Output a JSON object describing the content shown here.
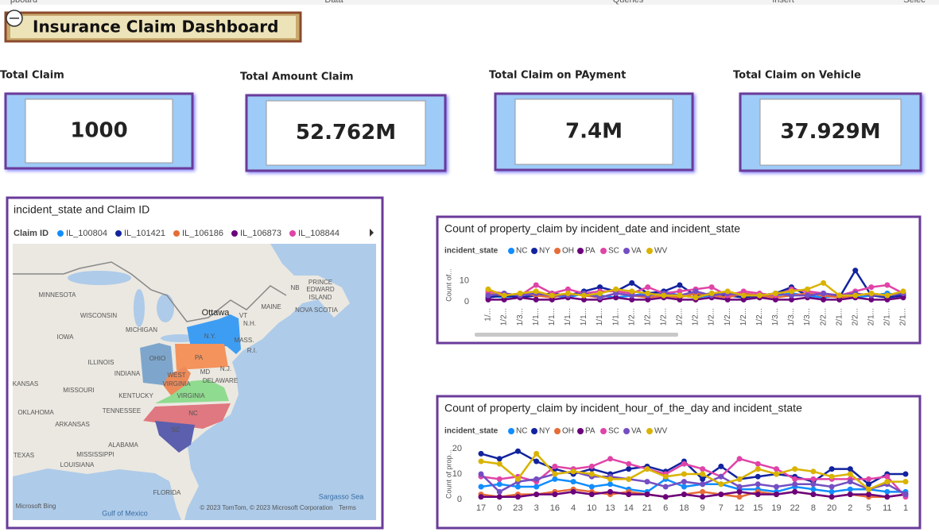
{
  "toolbar": [
    "pboard",
    "Data",
    "Queries",
    "Insert",
    "Selec"
  ],
  "header": {
    "title": "Insurance Claim Dashboard"
  },
  "cards": [
    {
      "label": "Total Claim",
      "value": "1000"
    },
    {
      "label": "Total Amount Claim",
      "value": "52.762M"
    },
    {
      "label": "Total Claim on PAyment",
      "value": "7.4M"
    },
    {
      "label": "Total Claim on Vehicle",
      "value": "37.929M"
    }
  ],
  "map": {
    "title": "incident_state and Claim ID",
    "legend_title": "Claim ID",
    "legend": [
      {
        "name": "IL_100804",
        "color": "#118dff"
      },
      {
        "name": "IL_101421",
        "color": "#12239e"
      },
      {
        "name": "IL_106186",
        "color": "#e66c37"
      },
      {
        "name": "IL_106873",
        "color": "#6b007b"
      },
      {
        "name": "IL_108844",
        "color": "#e044a7"
      }
    ],
    "labels": [
      "MINNESOTA",
      "WISCONSIN",
      "MICHIGAN",
      "IOWA",
      "ILLINOIS",
      "INDIANA",
      "OHIO",
      "KANSAS",
      "MISSOURI",
      "KENTUCKY",
      "OKLAHOMA",
      "TENNESSEE",
      "ARKANSAS",
      "ALABAMA",
      "MISSISSIPPI",
      "LOUISIANA",
      "TEXAS",
      "FLORIDA",
      "Gulf of Mexico",
      "Sargasso Sea",
      "Ottawa",
      "MAINE",
      "NB",
      "PRINCE",
      "EDWARD",
      "ISLAND",
      "NOVA SCOTIA",
      "VT",
      "N.H.",
      "MASS.",
      "R.I.",
      "N.Y.",
      "PA",
      "MD",
      "N.J.",
      "DELAWARE",
      "WEST",
      "VIRGINIA",
      "VIRGINIA",
      "NC",
      "SC",
      "Microsoft Bing",
      "© 2023 TomTom, © 2023 Microsoft Corporation",
      "Terms"
    ]
  },
  "chart_data": [
    {
      "type": "line",
      "title": "Count of property_claim by incident_date and incident_state",
      "legend_title": "incident_state",
      "y_label": "Count of...",
      "categories": [
        "1/...",
        "1/2...",
        "1/3...",
        "1/1...",
        "1/1...",
        "1/1...",
        "1/1...",
        "1/1...",
        "1/1...",
        "1/2...",
        "1/2...",
        "1/2...",
        "1/2...",
        "1/2...",
        "1/2...",
        "1/2...",
        "1/2...",
        "1/2...",
        "1/3...",
        "1/3...",
        "1/3...",
        "2/2...",
        "2/1...",
        "2/2...",
        "2/1...",
        "2/1...",
        "2/1..."
      ],
      "ylim": [
        0,
        16
      ],
      "yticks": [
        0,
        10
      ],
      "series": [
        {
          "name": "NC",
          "color": "#118dff",
          "values": [
            3,
            2,
            3,
            4,
            3,
            2,
            4,
            3,
            2,
            3,
            4,
            5,
            3,
            2,
            3,
            4,
            3,
            2,
            3,
            4,
            3,
            2,
            3,
            2,
            3,
            4,
            3
          ]
        },
        {
          "name": "NY",
          "color": "#12239e",
          "values": [
            2,
            3,
            2,
            3,
            4,
            3,
            5,
            7,
            5,
            9,
            4,
            5,
            8,
            3,
            4,
            3,
            2,
            3,
            4,
            7,
            3,
            4,
            2,
            15,
            3,
            2,
            3
          ]
        },
        {
          "name": "OH",
          "color": "#e66c37",
          "values": [
            4,
            3,
            4,
            3,
            2,
            4,
            3,
            2,
            4,
            3,
            2,
            3,
            2,
            4,
            3,
            2,
            4,
            3,
            2,
            3,
            4,
            3,
            2,
            3,
            4,
            3,
            4
          ]
        },
        {
          "name": "PA",
          "color": "#6b007b",
          "values": [
            1,
            1,
            2,
            1,
            1,
            2,
            1,
            1,
            2,
            1,
            1,
            2,
            1,
            1,
            2,
            1,
            1,
            2,
            1,
            1,
            2,
            1,
            1,
            2,
            1,
            1,
            2
          ]
        },
        {
          "name": "SC",
          "color": "#e044a7",
          "values": [
            5,
            4,
            3,
            8,
            4,
            6,
            4,
            5,
            5,
            4,
            7,
            4,
            5,
            6,
            7,
            3,
            5,
            4,
            3,
            6,
            5,
            4,
            3,
            5,
            7,
            8,
            4
          ]
        },
        {
          "name": "VA",
          "color": "#744ec2",
          "values": [
            3,
            4,
            3,
            4,
            3,
            3,
            4,
            2,
            4,
            3,
            3,
            4,
            3,
            5,
            3,
            4,
            3,
            3,
            4,
            3,
            3,
            4,
            3,
            4,
            3,
            3,
            4
          ]
        },
        {
          "name": "WV",
          "color": "#d9b300",
          "values": [
            6,
            3,
            4,
            5,
            3,
            4,
            3,
            4,
            6,
            5,
            4,
            3,
            3,
            2,
            4,
            5,
            3,
            3,
            4,
            5,
            6,
            9,
            3,
            3,
            4,
            3,
            5
          ]
        }
      ]
    },
    {
      "type": "line",
      "title": "Count of property_claim by incident_hour_of_the_day and incident_state",
      "legend_title": "incident_state",
      "y_label": "Count of prop...",
      "categories": [
        "17",
        "0",
        "23",
        "3",
        "16",
        "4",
        "10",
        "13",
        "14",
        "21",
        "6",
        "18",
        "9",
        "7",
        "12",
        "15",
        "19",
        "22",
        "8",
        "20",
        "2",
        "5",
        "11",
        "1"
      ],
      "ylim": [
        0,
        20
      ],
      "yticks": [
        0,
        10,
        20
      ],
      "series": [
        {
          "name": "NC",
          "color": "#118dff",
          "values": [
            5,
            6,
            5,
            5,
            8,
            7,
            5,
            6,
            4,
            3,
            8,
            5,
            6,
            6,
            4,
            4,
            3,
            5,
            4,
            3,
            4,
            4,
            3,
            3
          ]
        },
        {
          "name": "NY",
          "color": "#12239e",
          "values": [
            18,
            16,
            19,
            15,
            12,
            10,
            12,
            10,
            12,
            13,
            11,
            15,
            8,
            13,
            8,
            9,
            10,
            9,
            7,
            12,
            12,
            6,
            10,
            10
          ]
        },
        {
          "name": "OH",
          "color": "#e66c37",
          "values": [
            2,
            1,
            2,
            2,
            3,
            4,
            3,
            2,
            3,
            2,
            1,
            2,
            3,
            2,
            1,
            3,
            2,
            3,
            2,
            1,
            2,
            1,
            1,
            2
          ]
        },
        {
          "name": "PA",
          "color": "#6b007b",
          "values": [
            1,
            1,
            1,
            2,
            2,
            3,
            2,
            3,
            2,
            2,
            1,
            2,
            1,
            2,
            3,
            2,
            2,
            3,
            2,
            1,
            2,
            2,
            1,
            2
          ]
        },
        {
          "name": "SC",
          "color": "#e044a7",
          "values": [
            9,
            8,
            9,
            7,
            13,
            12,
            13,
            16,
            14,
            12,
            10,
            14,
            12,
            9,
            16,
            14,
            12,
            8,
            8,
            8,
            8,
            8,
            9,
            1
          ]
        },
        {
          "name": "VA",
          "color": "#744ec2",
          "values": [
            10,
            3,
            7,
            8,
            10,
            11,
            9,
            9,
            8,
            7,
            5,
            7,
            6,
            9,
            5,
            6,
            5,
            6,
            6,
            5,
            7,
            4,
            6,
            2
          ]
        },
        {
          "name": "WV",
          "color": "#d9b300",
          "values": [
            15,
            14,
            8,
            18,
            10,
            11,
            10,
            8,
            8,
            12,
            9,
            10,
            10,
            6,
            8,
            12,
            10,
            12,
            11,
            9,
            10,
            4,
            7,
            7
          ]
        }
      ]
    }
  ]
}
